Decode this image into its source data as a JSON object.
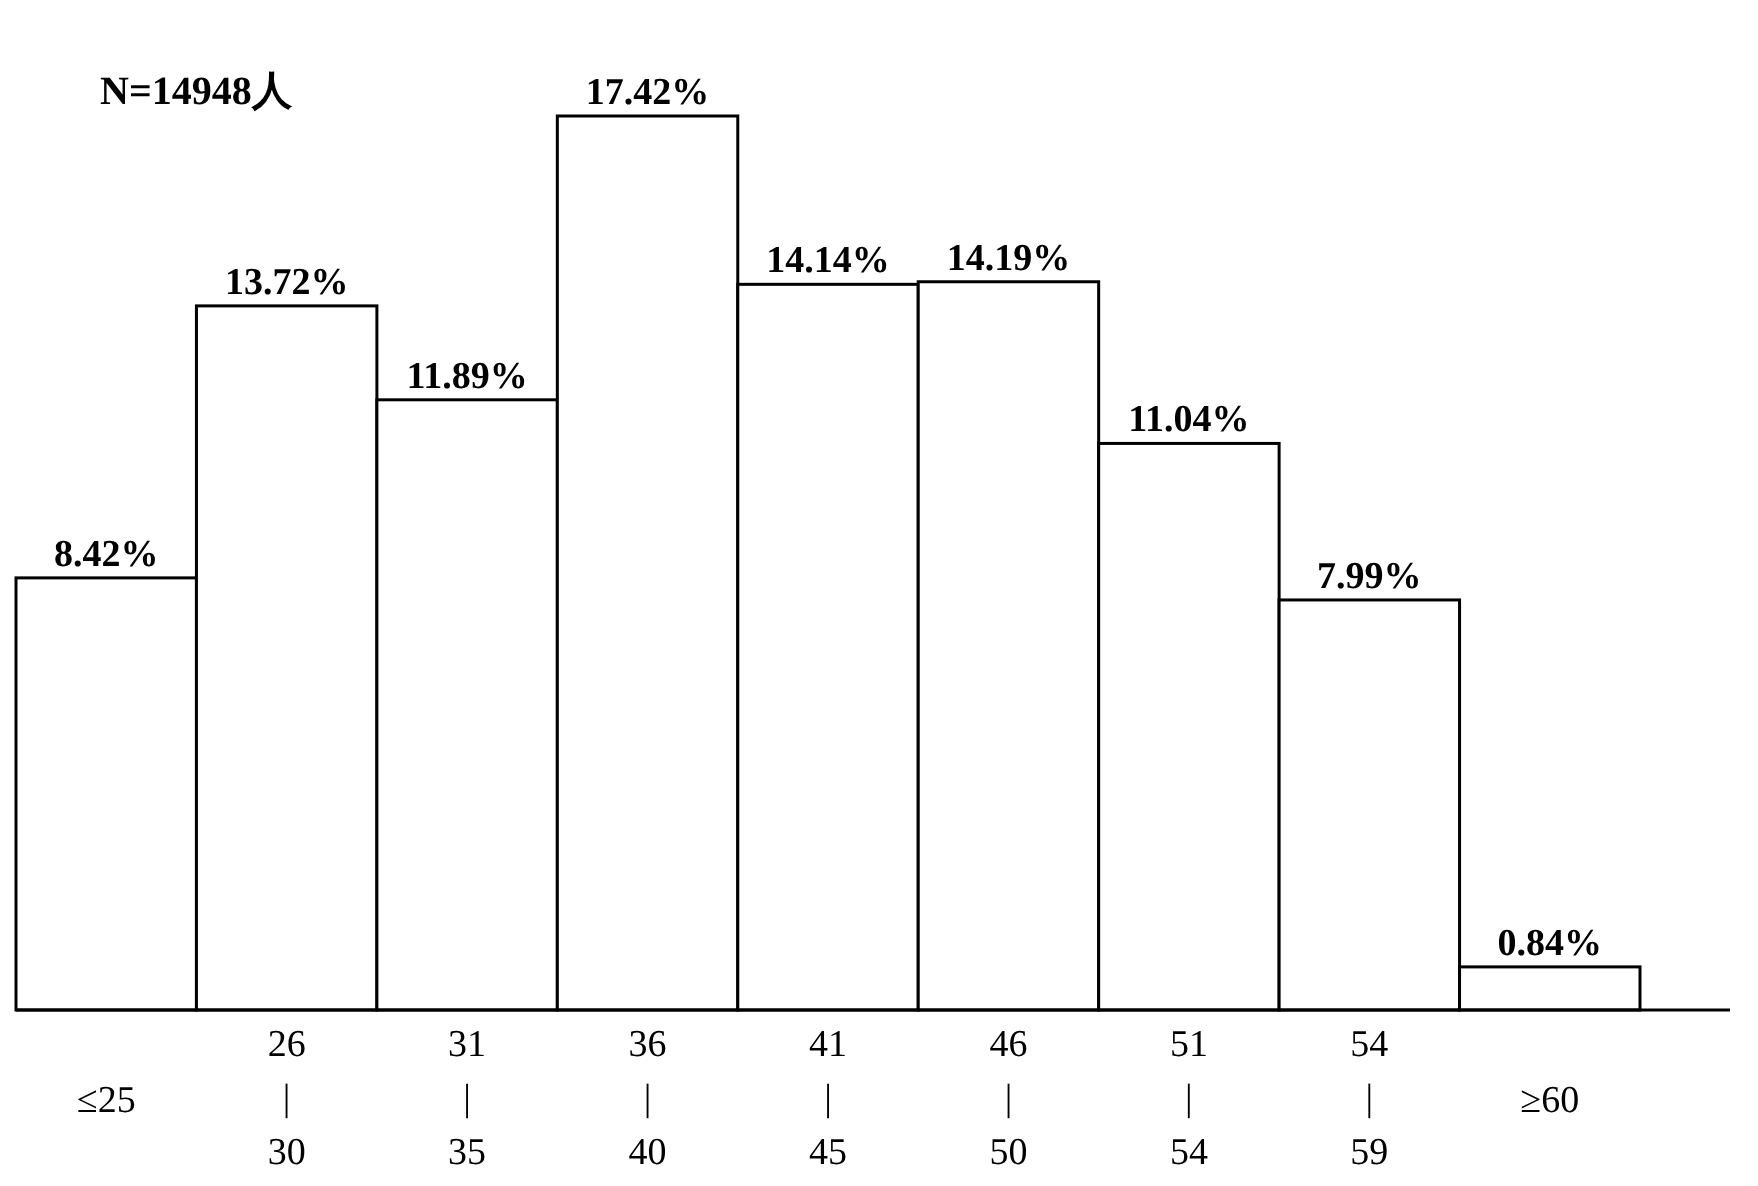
{
  "chart_data": {
    "type": "bar",
    "title": "N=14948人",
    "categories": [
      "≤25",
      "26\n|\n30",
      "31\n|\n35",
      "36\n|\n40",
      "41\n|\n45",
      "46\n|\n50",
      "51\n|\n54",
      "54\n|\n59",
      "≥60"
    ],
    "values": [
      8.42,
      13.72,
      11.89,
      17.42,
      14.14,
      14.19,
      11.04,
      7.99,
      0.84
    ],
    "value_labels": [
      "8.42%",
      "13.72%",
      "11.89%",
      "17.42%",
      "14.14%",
      "14.19%",
      "11.04%",
      "7.99%",
      "0.84%"
    ],
    "color": "#ffffff"
  }
}
